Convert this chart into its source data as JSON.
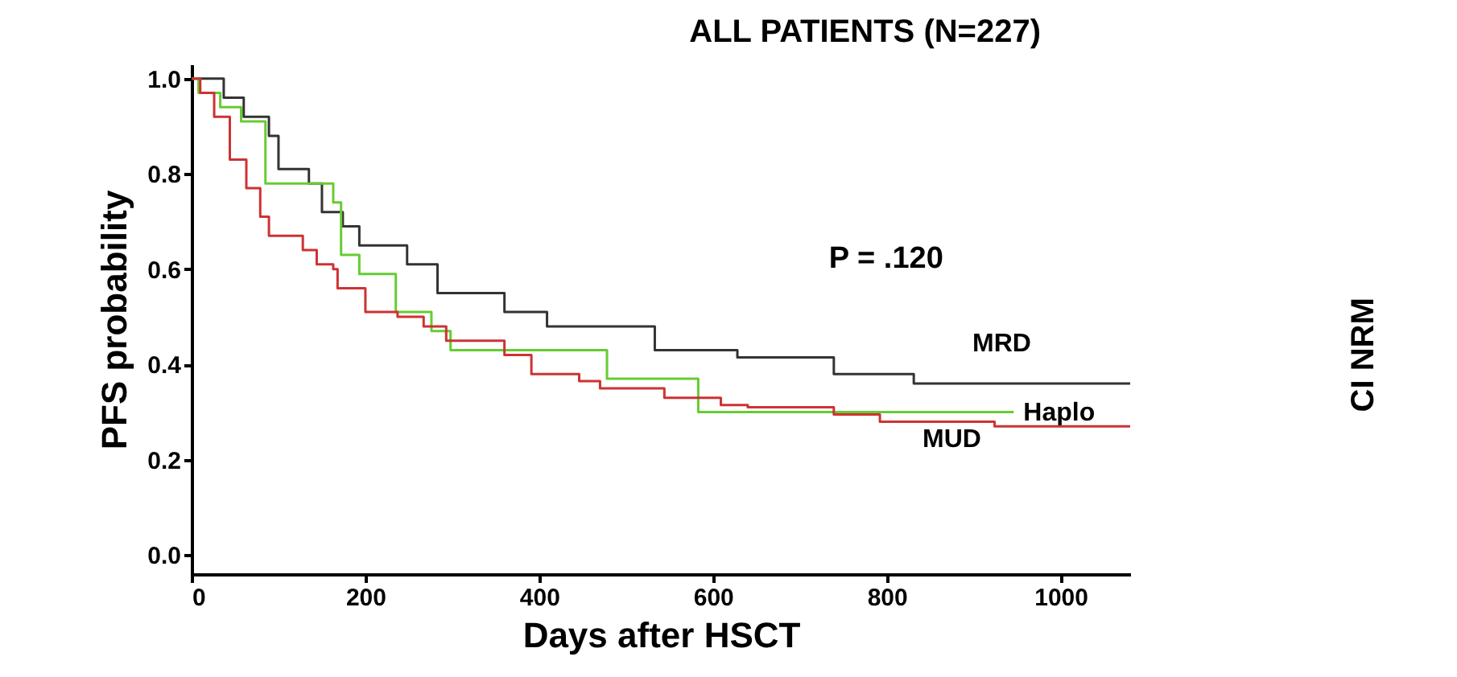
{
  "chart_data": {
    "type": "step",
    "title": "ALL PATIENTS (N=227)",
    "xlabel": "Days after HSCT",
    "ylabel": "PFS probability",
    "xlim": [
      0,
      1080
    ],
    "xticks": [
      0,
      200,
      400,
      600,
      800,
      1000
    ],
    "ylim": [
      -0.04,
      1.03
    ],
    "yticks": [
      {
        "value": 0,
        "label": "0.0"
      },
      {
        "value": 0.2,
        "label": "0.2"
      },
      {
        "value": 0.4,
        "label": "0.4"
      },
      {
        "value": 0.6,
        "label": "0.6"
      },
      {
        "value": 0.8,
        "label": "0.8"
      },
      {
        "value": 1,
        "label": "1.0"
      }
    ],
    "grid": false,
    "legend": false,
    "line_style": "solid",
    "marker": "none",
    "annotations": [
      "P = .120",
      "CI NRM"
    ],
    "series": [
      {
        "name": "MRD",
        "color": "#333333",
        "x": [
          0,
          37,
          60,
          89,
          100,
          135,
          150,
          174,
          193,
          248,
          283,
          360,
          409,
          533,
          628,
          739,
          831,
          1080
        ],
        "values": [
          1.0,
          0.96,
          0.92,
          0.88,
          0.81,
          0.78,
          0.72,
          0.69,
          0.65,
          0.61,
          0.55,
          0.51,
          0.48,
          0.43,
          0.415,
          0.38,
          0.36,
          0.36
        ]
      },
      {
        "name": "Haplo",
        "color": "#66cc33",
        "x": [
          0,
          8,
          33,
          57,
          85,
          163,
          172,
          193,
          235,
          276,
          298,
          478,
          583,
          946
        ],
        "values": [
          1.0,
          0.97,
          0.94,
          0.91,
          0.78,
          0.74,
          0.63,
          0.59,
          0.51,
          0.47,
          0.43,
          0.37,
          0.3,
          0.3
        ]
      },
      {
        "name": "MUD",
        "color": "#cc3333",
        "x": [
          0,
          10,
          26,
          44,
          63,
          79,
          89,
          128,
          144,
          163,
          168,
          200,
          237,
          267,
          293,
          360,
          391,
          446,
          470,
          544,
          609,
          640,
          739,
          792,
          924,
          1080
        ],
        "values": [
          1.0,
          0.97,
          0.92,
          0.83,
          0.77,
          0.71,
          0.67,
          0.64,
          0.61,
          0.6,
          0.56,
          0.51,
          0.5,
          0.48,
          0.45,
          0.42,
          0.38,
          0.365,
          0.35,
          0.33,
          0.315,
          0.31,
          0.295,
          0.28,
          0.27,
          0.27
        ]
      }
    ]
  }
}
